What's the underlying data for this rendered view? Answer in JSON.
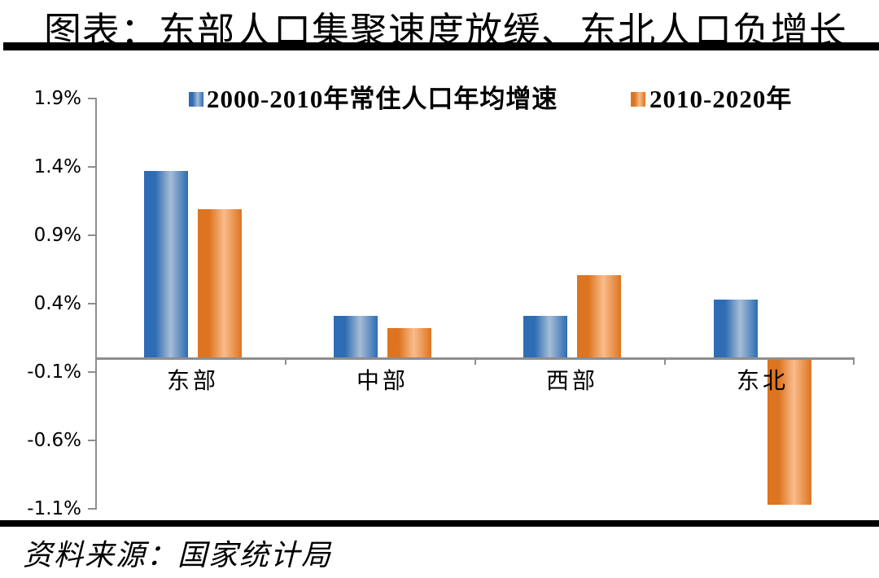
{
  "header": {
    "title": "图表：东部人口集聚速度放缓、东北人口负增长"
  },
  "chart_data": {
    "type": "bar",
    "title": "图表：东部人口集聚速度放缓、东北人口负增长",
    "categories": [
      "东部",
      "中部",
      "西部",
      "东北"
    ],
    "series": [
      {
        "name": "2000-2010年常住人口年均增速",
        "color": "#2e6cb3",
        "color_light": "#a6bdd6",
        "values": [
          1.37,
          0.31,
          0.31,
          0.43
        ]
      },
      {
        "name": "2010-2020年",
        "color": "#dd7420",
        "color_light": "#f9bc8c",
        "values": [
          1.09,
          0.22,
          0.61,
          -1.07
        ]
      }
    ],
    "unit": "%",
    "y_tick_labels": [
      "1.9%",
      "1.4%",
      "0.9%",
      "0.4%",
      "-0.1%",
      "-0.6%",
      "-1.1%"
    ],
    "y_tick_values": [
      1.9,
      1.4,
      0.9,
      0.4,
      -0.1,
      -0.6,
      -1.1
    ],
    "ylim": [
      -1.1,
      1.9
    ],
    "legend_position": "top",
    "grid": false,
    "axis_color": "#8e8e8e"
  },
  "footer": {
    "source": "资料来源：国家统计局"
  }
}
